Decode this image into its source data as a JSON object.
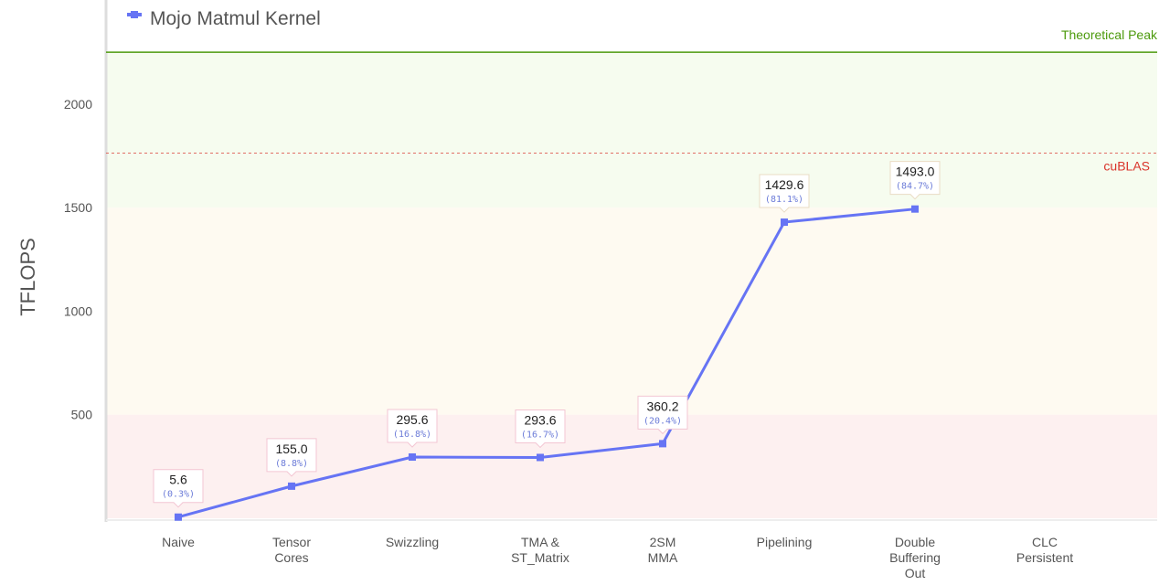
{
  "chart_data": {
    "type": "line",
    "legend": {
      "label": "Mojo Matmul Kernel",
      "placement": "top-left"
    },
    "ylabel": "TFLOPS",
    "ylim": [
      0,
      2250
    ],
    "yticks": [
      500,
      1000,
      1500,
      2000
    ],
    "categories": [
      [
        "Naive"
      ],
      [
        "Tensor",
        "Cores"
      ],
      [
        "Swizzling"
      ],
      [
        "TMA &",
        "ST_Matrix"
      ],
      [
        "2SM",
        "MMA"
      ],
      [
        "Pipelining"
      ],
      [
        "Double",
        "Buffering",
        "Out"
      ],
      [
        "CLC",
        "Persistent"
      ]
    ],
    "series": [
      {
        "name": "Mojo Matmul Kernel",
        "values": [
          5.6,
          155.0,
          295.6,
          293.6,
          360.2,
          1429.6,
          1493.0,
          null
        ],
        "labels": [
          "5.6",
          "155.0",
          "295.6",
          "293.6",
          "360.2",
          "1429.6",
          "1493.0",
          null
        ],
        "percent_labels": [
          "(0.3%)",
          "(8.8%)",
          "(16.8%)",
          "(16.7%)",
          "(20.4%)",
          "(81.1%)",
          "(84.7%)",
          null
        ],
        "color": "#6674f4"
      }
    ],
    "reference_lines": [
      {
        "label": "Theoretical Peak",
        "value": 2250,
        "color": "#4c9a0c",
        "style": "solid"
      },
      {
        "label": "cuBLAS",
        "value": 1763,
        "color": "#d9342b",
        "style": "dashed"
      }
    ],
    "bands": [
      {
        "from": 0,
        "to": 500,
        "color": "#fdf0f0"
      },
      {
        "from": 500,
        "to": 1500,
        "color": "#fefaf1"
      },
      {
        "from": 1500,
        "to": 2250,
        "color": "#f6fcef"
      }
    ]
  }
}
